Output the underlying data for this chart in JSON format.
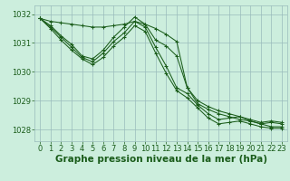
{
  "bg_color": "#cceedd",
  "grid_color": "#99bbbb",
  "line_color": "#1a5c1a",
  "xlabel": "Graphe pression niveau de la mer (hPa)",
  "xlabel_fontsize": 7.5,
  "tick_fontsize": 6,
  "xlim": [
    -0.5,
    23.5
  ],
  "ylim": [
    1027.6,
    1032.3
  ],
  "yticks": [
    1028,
    1029,
    1030,
    1031,
    1032
  ],
  "xticks": [
    0,
    1,
    2,
    3,
    4,
    5,
    6,
    7,
    8,
    9,
    10,
    11,
    12,
    13,
    14,
    15,
    16,
    17,
    18,
    19,
    20,
    21,
    22,
    23
  ],
  "series": [
    [
      1031.85,
      1031.6,
      1031.25,
      1030.95,
      1030.55,
      1030.45,
      1030.75,
      1031.2,
      1031.55,
      1031.9,
      1031.65,
      1031.1,
      1030.9,
      1030.55,
      1029.45,
      1028.9,
      1028.7,
      1028.55,
      1028.45,
      1028.35,
      1028.3,
      1028.2,
      1028.25,
      1028.2
    ],
    [
      1031.85,
      1031.55,
      1031.2,
      1030.85,
      1030.5,
      1030.35,
      1030.65,
      1031.05,
      1031.35,
      1031.75,
      1031.55,
      1030.85,
      1030.2,
      1029.45,
      1029.25,
      1028.85,
      1028.55,
      1028.35,
      1028.4,
      1028.45,
      1028.3,
      1028.2,
      1028.1,
      1028.1
    ],
    [
      1031.85,
      1031.5,
      1031.1,
      1030.75,
      1030.45,
      1030.25,
      1030.5,
      1030.9,
      1031.2,
      1031.6,
      1031.4,
      1030.65,
      1029.95,
      1029.35,
      1029.1,
      1028.75,
      1028.4,
      1028.2,
      1028.25,
      1028.3,
      1028.2,
      1028.1,
      1028.05,
      1028.05
    ],
    [
      1031.85,
      1031.75,
      1031.7,
      1031.65,
      1031.6,
      1031.55,
      1031.55,
      1031.6,
      1031.65,
      1031.75,
      1031.65,
      1031.5,
      1031.3,
      1031.05,
      1029.45,
      1029.0,
      1028.8,
      1028.65,
      1028.55,
      1028.45,
      1028.35,
      1028.25,
      1028.3,
      1028.25
    ]
  ]
}
